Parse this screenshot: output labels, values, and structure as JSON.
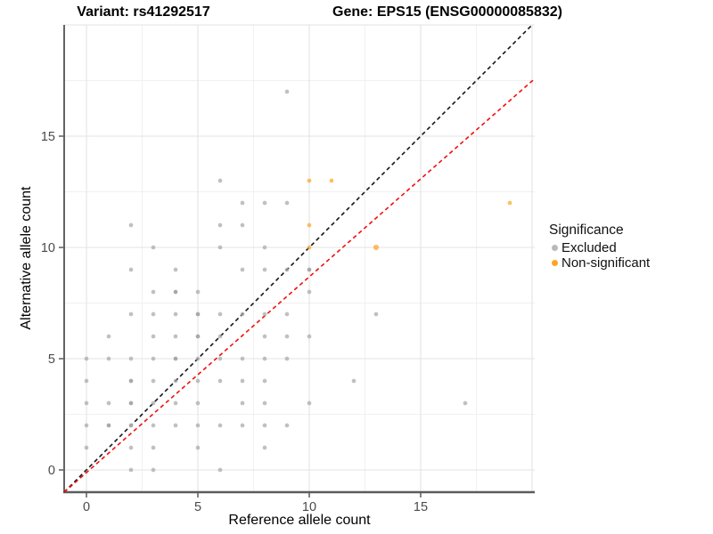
{
  "title_left": "Variant: rs41292517",
  "title_right": "Gene: EPS15 (ENSG00000085832)",
  "x_axis": {
    "label": "Reference allele count",
    "ticks": [
      0,
      5,
      10,
      15
    ]
  },
  "y_axis": {
    "label": "Alternative allele count",
    "ticks": [
      0,
      5,
      10,
      15
    ]
  },
  "legend": {
    "title": "Significance",
    "items": [
      {
        "label": "Excluded",
        "color": "#b9b9b9"
      },
      {
        "label": "Non-significant",
        "color": "#FFA427"
      }
    ]
  },
  "chart_data": {
    "type": "scatter",
    "title": "Variant: rs41292517 / Gene: EPS15 (ENSG00000085832)",
    "xlabel": "Reference allele count",
    "ylabel": "Alternative allele count",
    "xlim": [
      -1,
      20.12
    ],
    "ylim": [
      -1,
      20
    ],
    "grid": {
      "major": [
        0,
        5,
        10,
        15,
        20
      ],
      "minor": [
        2.5,
        7.5,
        12.5,
        17.5
      ],
      "major_color": "#e3e3e3",
      "minor_color": "#f0f0f0"
    },
    "legend_position": "right",
    "series": [
      {
        "name": "Excluded",
        "color": "#a8a8a8",
        "points": [
          [
            2,
            0
          ],
          [
            3,
            0
          ],
          [
            6,
            0
          ],
          [
            0,
            1
          ],
          [
            2,
            1
          ],
          [
            3,
            1
          ],
          [
            5,
            1
          ],
          [
            8,
            1
          ],
          [
            0,
            2
          ],
          [
            1,
            2,
            1
          ],
          [
            2,
            2,
            1
          ],
          [
            3,
            2
          ],
          [
            4,
            2
          ],
          [
            5,
            2
          ],
          [
            6,
            2
          ],
          [
            7,
            2
          ],
          [
            8,
            2
          ],
          [
            9,
            2
          ],
          [
            0,
            3
          ],
          [
            1,
            3
          ],
          [
            2,
            3,
            1
          ],
          [
            3,
            3
          ],
          [
            4,
            3
          ],
          [
            5,
            3
          ],
          [
            7,
            3
          ],
          [
            8,
            3
          ],
          [
            10,
            3
          ],
          [
            17,
            3
          ],
          [
            0,
            4
          ],
          [
            2,
            4,
            1
          ],
          [
            3,
            4
          ],
          [
            4,
            4
          ],
          [
            5,
            4
          ],
          [
            6,
            4
          ],
          [
            7,
            4
          ],
          [
            8,
            4
          ],
          [
            12,
            4
          ],
          [
            0,
            5
          ],
          [
            1,
            5
          ],
          [
            2,
            5
          ],
          [
            3,
            5
          ],
          [
            4,
            5,
            1
          ],
          [
            5,
            5
          ],
          [
            6,
            5
          ],
          [
            7,
            5
          ],
          [
            8,
            5
          ],
          [
            9,
            5
          ],
          [
            1,
            6
          ],
          [
            3,
            6
          ],
          [
            4,
            6
          ],
          [
            5,
            6,
            1
          ],
          [
            6,
            6
          ],
          [
            8,
            6
          ],
          [
            9,
            6
          ],
          [
            10,
            6
          ],
          [
            2,
            7
          ],
          [
            3,
            7
          ],
          [
            4,
            7
          ],
          [
            5,
            7,
            1
          ],
          [
            6,
            7
          ],
          [
            7,
            7
          ],
          [
            8,
            7
          ],
          [
            9,
            7
          ],
          [
            13,
            7
          ],
          [
            3,
            8
          ],
          [
            4,
            8,
            1
          ],
          [
            5,
            8
          ],
          [
            10,
            8
          ],
          [
            2,
            9
          ],
          [
            4,
            9
          ],
          [
            7,
            9
          ],
          [
            8,
            9
          ],
          [
            9,
            9
          ],
          [
            10,
            9,
            1
          ],
          [
            3,
            10
          ],
          [
            6,
            10
          ],
          [
            8,
            10
          ],
          [
            2,
            11
          ],
          [
            6,
            11
          ],
          [
            7,
            11
          ],
          [
            7,
            12
          ],
          [
            8,
            12
          ],
          [
            9,
            12
          ],
          [
            6,
            13
          ],
          [
            9,
            17
          ]
        ]
      },
      {
        "name": "Non-significant",
        "color": "#FFA427",
        "points": [
          [
            10,
            13
          ],
          [
            11,
            13
          ],
          [
            10,
            11
          ],
          [
            10,
            10
          ],
          [
            13,
            10,
            2
          ],
          [
            19,
            12
          ]
        ]
      }
    ],
    "lines": [
      {
        "name": "identity",
        "color": "#151515",
        "style": "dashed",
        "slope": 1,
        "intercept": 0
      },
      {
        "name": "fitted-ratio",
        "color": "#f20d0d",
        "style": "dashed",
        "slope": 0.88,
        "intercept": -0.12
      }
    ]
  }
}
